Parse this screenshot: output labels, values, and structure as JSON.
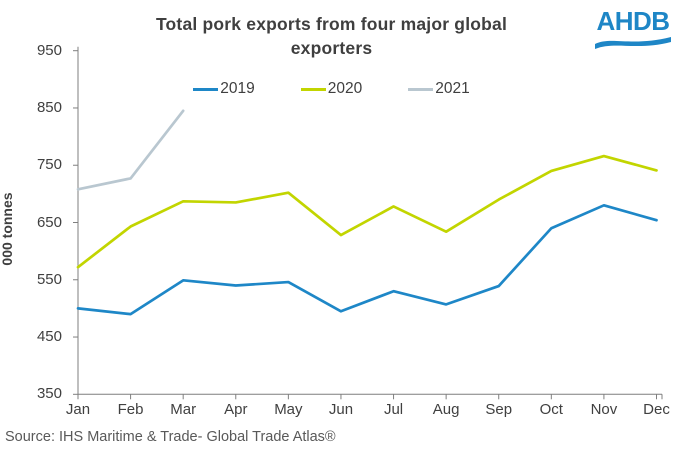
{
  "title": {
    "line1": "Total pork exports from four major global",
    "line2": "exporters"
  },
  "logo": {
    "text": "AHDB",
    "color": "#1e86c6"
  },
  "source": "Source: IHS Maritime & Trade- Global Trade Atlas®",
  "axis_colors": {
    "line": "#7f7f7f",
    "text": "#404040"
  },
  "chart_data": {
    "type": "line",
    "title": "Total pork exports from four major global exporters",
    "xlabel": "",
    "ylabel": "000 tonnes",
    "ylim": [
      350,
      950
    ],
    "yticks": [
      950,
      850,
      750,
      650,
      550,
      450,
      350
    ],
    "grid": false,
    "legend_position": "top-center",
    "categories": [
      "Jan",
      "Feb",
      "Mar",
      "Apr",
      "May",
      "Jun",
      "Jul",
      "Aug",
      "Sep",
      "Oct",
      "Nov",
      "Dec"
    ],
    "series": [
      {
        "name": "2019",
        "color": "#1e87c7",
        "values": [
          500,
          490,
          549,
          540,
          546,
          495,
          530,
          507,
          539,
          640,
          680,
          654
        ]
      },
      {
        "name": "2020",
        "color": "#c2d500",
        "values": [
          572,
          643,
          687,
          685,
          702,
          628,
          678,
          634,
          690,
          740,
          766,
          741
        ]
      },
      {
        "name": "2021",
        "color": "#b9c7d0",
        "values": [
          708,
          727,
          845
        ]
      }
    ]
  }
}
